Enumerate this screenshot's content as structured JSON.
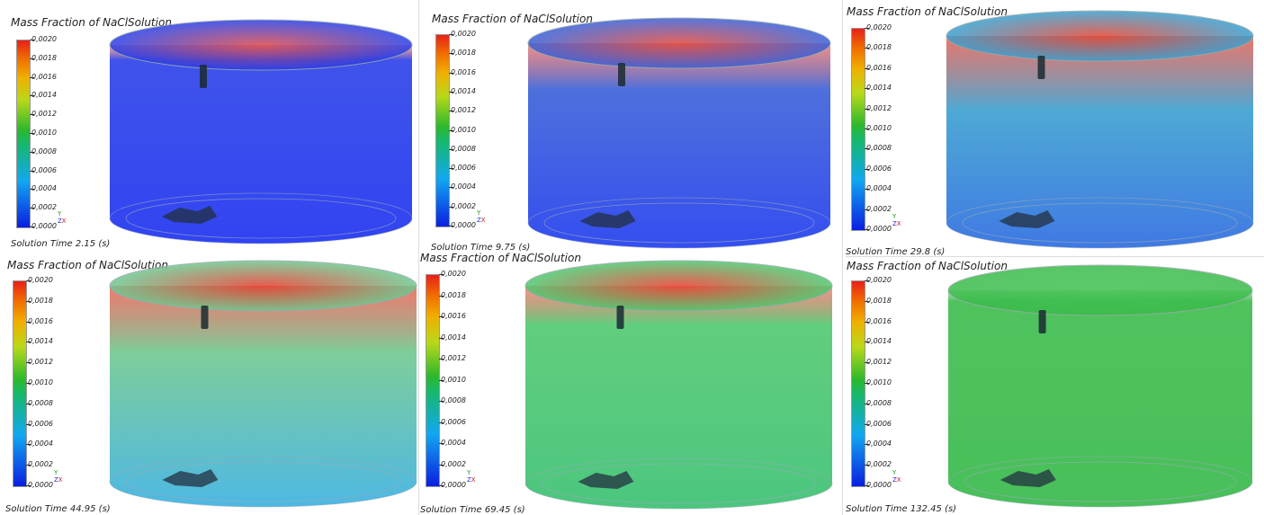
{
  "legend_title": "Mass Fraction of NaClSolution",
  "ticks": [
    "0,0020",
    "0,0018",
    "0,0016",
    "0,0014",
    "0,0012",
    "0,0010",
    "0,0008",
    "0,0006",
    "0,0004",
    "0,0002",
    "0,0000"
  ],
  "axes_labels": {
    "y": "Y",
    "z": "Z",
    "x": "X"
  },
  "panels": [
    {
      "time": "Solution Time 2.15 (s)",
      "base": "#1a2ff0",
      "top": "#d84850",
      "top_amount": 0.15,
      "mix": "#2a40e8"
    },
    {
      "time": "Solution Time 9.75 (s)",
      "base": "#1e3aee",
      "top": "#e04840",
      "top_amount": 0.45,
      "mix": "#3a60d8"
    },
    {
      "time": "Solution Time 29.8 (s)",
      "base": "#2a6ae0",
      "top": "#e04838",
      "top_amount": 0.7,
      "mix": "#3aa0d0"
    },
    {
      "time": "Solution Time 44.95 (s)",
      "base": "#3ab0e0",
      "top": "#e44030",
      "top_amount": 0.6,
      "mix": "#70c890"
    },
    {
      "time": "Solution Time 69.45 (s)",
      "base": "#38c070",
      "top": "#e84030",
      "top_amount": 0.35,
      "mix": "#50c870"
    },
    {
      "time": "Solution Time 132.45 (s)",
      "base": "#34b848",
      "top": "#40c050",
      "top_amount": 0.0,
      "mix": "#3cbc4c"
    }
  ]
}
